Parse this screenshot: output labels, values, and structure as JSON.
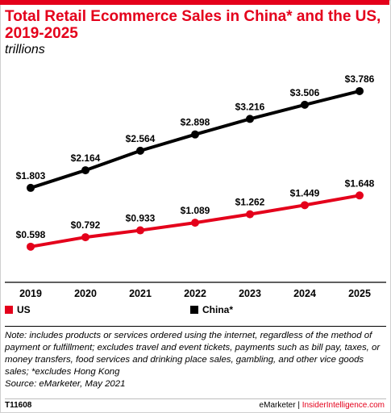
{
  "header": {
    "title": "Total Retail Ecommerce Sales in China* and the US, 2019-2025",
    "subtitle": "trillions"
  },
  "chart_data": {
    "type": "line",
    "title": "Total Retail Ecommerce Sales in China* and the US, 2019-2025",
    "subtitle": "trillions",
    "x": [
      "2019",
      "2020",
      "2021",
      "2022",
      "2023",
      "2024",
      "2025"
    ],
    "ylim": [
      0,
      4
    ],
    "grid": false,
    "legend": "bottom-left",
    "series": [
      {
        "name": "China*",
        "color": "#000000",
        "values": [
          1.803,
          2.164,
          2.564,
          2.898,
          3.216,
          3.506,
          3.786
        ],
        "labels": [
          "$1.803",
          "$2.164",
          "$2.564",
          "$2.898",
          "$3.216",
          "$3.506",
          "$3.786"
        ]
      },
      {
        "name": "US",
        "color": "#e4001b",
        "values": [
          0.598,
          0.792,
          0.933,
          1.089,
          1.262,
          1.449,
          1.648
        ],
        "labels": [
          "$0.598",
          "$0.792",
          "$0.933",
          "$1.089",
          "$1.262",
          "$1.449",
          "$1.648"
        ]
      }
    ]
  },
  "legend": {
    "us_label": "US",
    "china_label": "China*",
    "us_color": "#e4001b",
    "china_color": "#000000"
  },
  "note": "Note: includes products or services ordered using the internet, regardless of the method of payment or fulfillment; excludes travel and event tickets, payments such as bill pay, taxes, or money transfers, food services and drinking place sales, gambling, and other vice goods sales; *excludes Hong Kong",
  "source": "Source: eMarketer, May 2021",
  "footer": {
    "chart_id": "T11608",
    "brand_left": "eMarketer",
    "separator": " | ",
    "brand_right": "InsiderIntelligence.com"
  }
}
